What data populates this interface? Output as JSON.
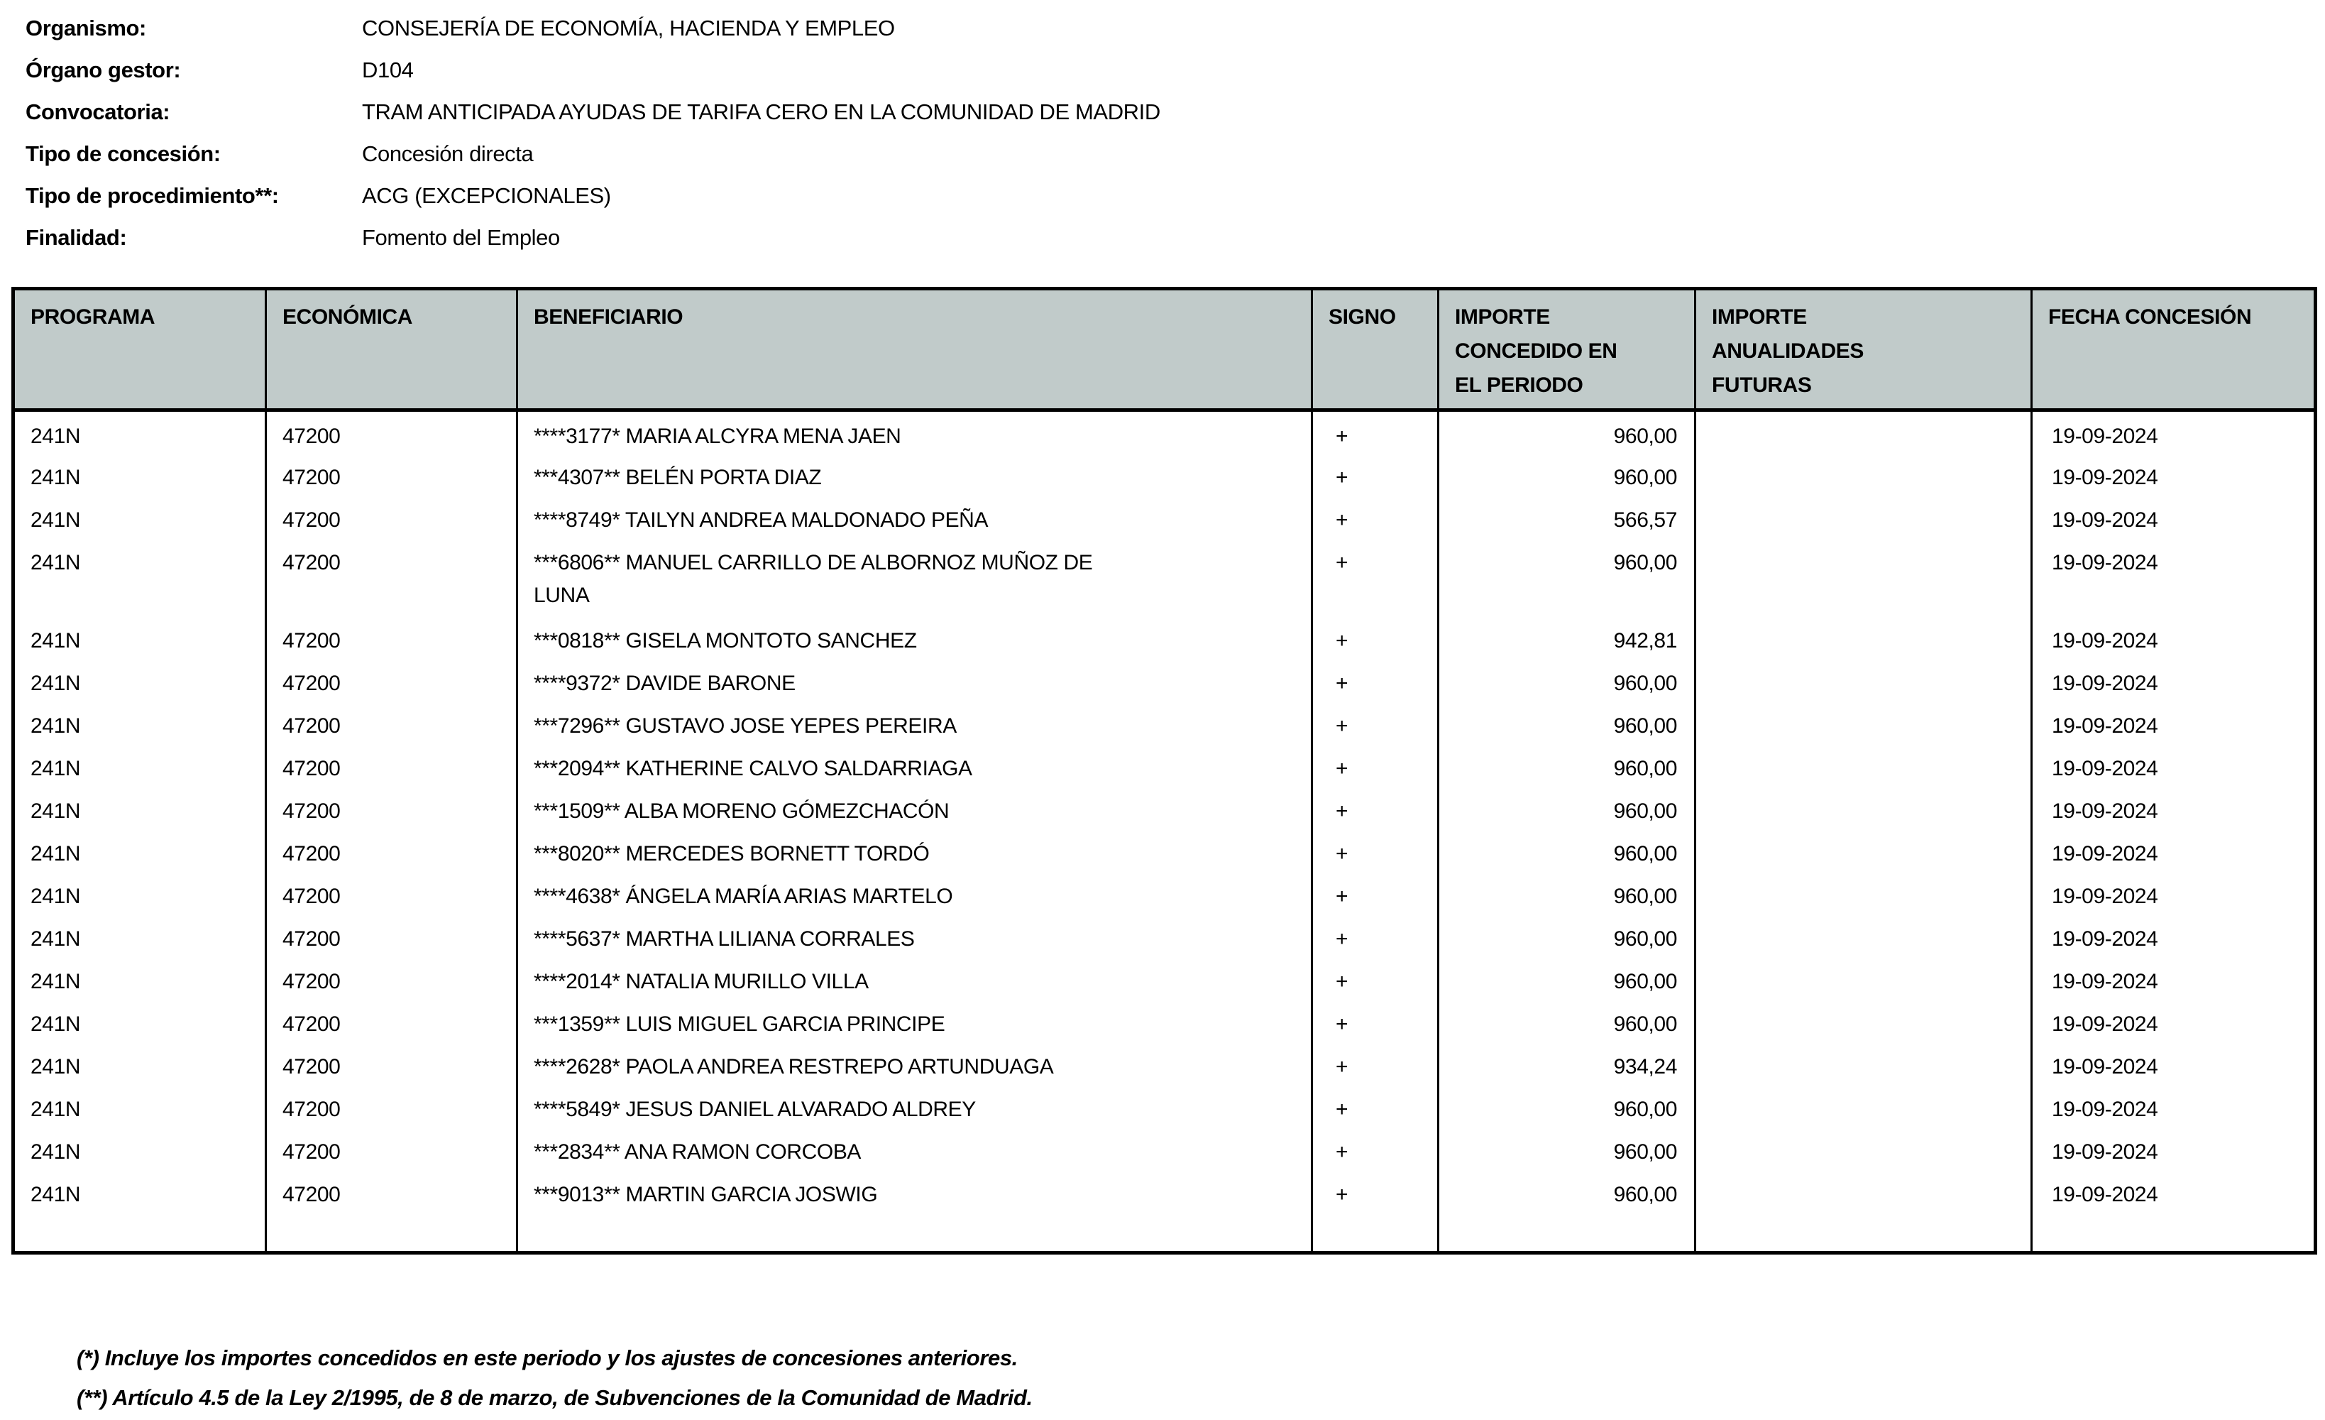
{
  "meta": {
    "fields": [
      {
        "label": "Organismo:",
        "value": "CONSEJERÍA DE ECONOMÍA, HACIENDA Y EMPLEO"
      },
      {
        "label": "Órgano gestor:",
        "value": "D104"
      },
      {
        "label": "Convocatoria:",
        "value": "TRAM ANTICIPADA AYUDAS DE TARIFA CERO EN LA COMUNIDAD DE MADRID"
      },
      {
        "label": "Tipo de concesión:",
        "value": "Concesión directa"
      },
      {
        "label": "Tipo de procedimiento**:",
        "value": "ACG (EXCEPCIONALES)"
      },
      {
        "label": "Finalidad:",
        "value": "Fomento del Empleo"
      }
    ]
  },
  "table": {
    "header_bg": "#c1cbca",
    "columns": [
      {
        "key": "programa",
        "label": "PROGRAMA"
      },
      {
        "key": "economica",
        "label": "ECONÓMICA"
      },
      {
        "key": "beneficiario",
        "label": "BENEFICIARIO"
      },
      {
        "key": "signo",
        "label": "SIGNO"
      },
      {
        "key": "importe_periodo",
        "label": "IMPORTE\nCONCEDIDO EN\nEL PERIODO"
      },
      {
        "key": "importe_futuras",
        "label": "IMPORTE\nANUALIDADES\nFUTURAS"
      },
      {
        "key": "fecha",
        "label": "FECHA CONCESIÓN"
      }
    ],
    "rows": [
      {
        "programa": "241N",
        "economica": "47200",
        "beneficiario": "****3177* MARIA ALCYRA MENA JAEN",
        "signo": "+",
        "importe_periodo": "960,00",
        "importe_futuras": "",
        "fecha": "19-09-2024"
      },
      {
        "programa": "241N",
        "economica": "47200",
        "beneficiario": "***4307** BELÉN PORTA DIAZ",
        "signo": "+",
        "importe_periodo": "960,00",
        "importe_futuras": "",
        "fecha": "19-09-2024"
      },
      {
        "programa": "241N",
        "economica": "47200",
        "beneficiario": "****8749* TAILYN ANDREA MALDONADO PEÑA",
        "signo": "+",
        "importe_periodo": "566,57",
        "importe_futuras": "",
        "fecha": "19-09-2024"
      },
      {
        "programa": "241N",
        "economica": "47200",
        "beneficiario": "***6806** MANUEL CARRILLO DE ALBORNOZ MUÑOZ DE\nLUNA",
        "signo": "+",
        "importe_periodo": "960,00",
        "importe_futuras": "",
        "fecha": "19-09-2024"
      },
      {
        "programa": "241N",
        "economica": "47200",
        "beneficiario": "***0818** GISELA MONTOTO SANCHEZ",
        "signo": "+",
        "importe_periodo": "942,81",
        "importe_futuras": "",
        "fecha": "19-09-2024"
      },
      {
        "programa": "241N",
        "economica": "47200",
        "beneficiario": "****9372* DAVIDE BARONE",
        "signo": "+",
        "importe_periodo": "960,00",
        "importe_futuras": "",
        "fecha": "19-09-2024"
      },
      {
        "programa": "241N",
        "economica": "47200",
        "beneficiario": "***7296** GUSTAVO JOSE YEPES PEREIRA",
        "signo": "+",
        "importe_periodo": "960,00",
        "importe_futuras": "",
        "fecha": "19-09-2024"
      },
      {
        "programa": "241N",
        "economica": "47200",
        "beneficiario": "***2094** KATHERINE CALVO SALDARRIAGA",
        "signo": "+",
        "importe_periodo": "960,00",
        "importe_futuras": "",
        "fecha": "19-09-2024"
      },
      {
        "programa": "241N",
        "economica": "47200",
        "beneficiario": "***1509** ALBA MORENO GÓMEZCHACÓN",
        "signo": "+",
        "importe_periodo": "960,00",
        "importe_futuras": "",
        "fecha": "19-09-2024"
      },
      {
        "programa": "241N",
        "economica": "47200",
        "beneficiario": "***8020** MERCEDES BORNETT TORDÓ",
        "signo": "+",
        "importe_periodo": "960,00",
        "importe_futuras": "",
        "fecha": "19-09-2024"
      },
      {
        "programa": "241N",
        "economica": "47200",
        "beneficiario": "****4638* ÁNGELA MARÍA ARIAS MARTELO",
        "signo": "+",
        "importe_periodo": "960,00",
        "importe_futuras": "",
        "fecha": "19-09-2024"
      },
      {
        "programa": "241N",
        "economica": "47200",
        "beneficiario": "****5637* MARTHA LILIANA CORRALES",
        "signo": "+",
        "importe_periodo": "960,00",
        "importe_futuras": "",
        "fecha": "19-09-2024"
      },
      {
        "programa": "241N",
        "economica": "47200",
        "beneficiario": "****2014* NATALIA MURILLO VILLA",
        "signo": "+",
        "importe_periodo": "960,00",
        "importe_futuras": "",
        "fecha": "19-09-2024"
      },
      {
        "programa": "241N",
        "economica": "47200",
        "beneficiario": "***1359** LUIS MIGUEL GARCIA PRINCIPE",
        "signo": "+",
        "importe_periodo": "960,00",
        "importe_futuras": "",
        "fecha": "19-09-2024"
      },
      {
        "programa": "241N",
        "economica": "47200",
        "beneficiario": "****2628* PAOLA ANDREA RESTREPO ARTUNDUAGA",
        "signo": "+",
        "importe_periodo": "934,24",
        "importe_futuras": "",
        "fecha": "19-09-2024"
      },
      {
        "programa": "241N",
        "economica": "47200",
        "beneficiario": "****5849* JESUS DANIEL ALVARADO ALDREY",
        "signo": "+",
        "importe_periodo": "960,00",
        "importe_futuras": "",
        "fecha": "19-09-2024"
      },
      {
        "programa": "241N",
        "economica": "47200",
        "beneficiario": "***2834** ANA RAMON CORCOBA",
        "signo": "+",
        "importe_periodo": "960,00",
        "importe_futuras": "",
        "fecha": "19-09-2024"
      },
      {
        "programa": "241N",
        "economica": "47200",
        "beneficiario": "***9013** MARTIN GARCIA JOSWIG",
        "signo": "+",
        "importe_periodo": "960,00",
        "importe_futuras": "",
        "fecha": "19-09-2024"
      }
    ]
  },
  "footnotes": [
    "(*) Incluye los importes concedidos en este periodo y los ajustes de concesiones anteriores.",
    "(**) Artículo 4.5 de la Ley 2/1995, de 8 de marzo, de Subvenciones de la Comunidad de Madrid."
  ]
}
